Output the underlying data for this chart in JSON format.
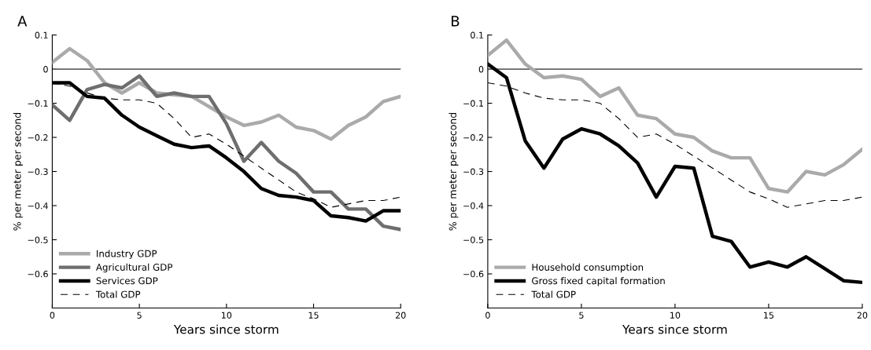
{
  "chart_data": [
    {
      "type": "line",
      "title": "A",
      "xlabel": "Years since storm",
      "ylabel": "% per meter per second",
      "x": [
        0,
        1,
        2,
        3,
        4,
        5,
        6,
        7,
        8,
        9,
        10,
        11,
        12,
        13,
        14,
        15,
        16,
        17,
        18,
        19,
        20
      ],
      "series": [
        {
          "name": "Industry GDP",
          "color": "#aaaaaa",
          "values": [
            0.02,
            0.06,
            0.025,
            -0.04,
            -0.07,
            -0.04,
            -0.07,
            -0.075,
            -0.08,
            -0.11,
            -0.14,
            -0.165,
            -0.155,
            -0.135,
            -0.17,
            -0.18,
            -0.205,
            -0.165,
            -0.14,
            -0.095,
            -0.08
          ]
        },
        {
          "name": "Agricultural GDP",
          "color": "#6e6e6e",
          "values": [
            -0.105,
            -0.15,
            -0.06,
            -0.045,
            -0.055,
            -0.02,
            -0.08,
            -0.07,
            -0.08,
            -0.08,
            -0.16,
            -0.27,
            -0.215,
            -0.27,
            -0.305,
            -0.36,
            -0.36,
            -0.41,
            -0.41,
            -0.46,
            -0.47
          ]
        },
        {
          "name": "Services GDP",
          "color": "#000000",
          "values": [
            -0.04,
            -0.04,
            -0.08,
            -0.085,
            -0.135,
            -0.17,
            -0.195,
            -0.22,
            -0.23,
            -0.225,
            -0.26,
            -0.3,
            -0.35,
            -0.37,
            -0.375,
            -0.385,
            -0.43,
            -0.435,
            -0.445,
            -0.415,
            -0.415
          ]
        },
        {
          "name": "Total GDP",
          "color": "#000000",
          "line_style": "dashed",
          "values": [
            -0.04,
            -0.05,
            -0.07,
            -0.085,
            -0.09,
            -0.09,
            -0.1,
            -0.145,
            -0.2,
            -0.19,
            -0.22,
            -0.255,
            -0.29,
            -0.325,
            -0.36,
            -0.38,
            -0.405,
            -0.395,
            -0.385,
            -0.385,
            -0.375
          ]
        }
      ],
      "xlim": [
        0,
        20
      ],
      "xticks": [
        0,
        5,
        10,
        15,
        20
      ],
      "ylim": [
        -0.7,
        0.1
      ],
      "yticks": [
        0.1,
        0,
        {
          "value": -0.1,
          "label": "−0.1"
        },
        {
          "value": -0.2,
          "label": "−0.2"
        },
        {
          "value": -0.3,
          "label": "−0.3"
        },
        {
          "value": -0.4,
          "label": "−0.4"
        },
        {
          "value": -0.5,
          "label": "−0.5"
        },
        {
          "value": -0.6,
          "label": "−0.6"
        }
      ],
      "ref_lines": [
        {
          "axis": "y",
          "value": 0,
          "color": "#666666"
        }
      ],
      "legend": "bottom left",
      "grid": false
    },
    {
      "type": "line",
      "title": "B",
      "xlabel": "Years since storm",
      "ylabel": "% per meter per second",
      "x": [
        0,
        1,
        2,
        3,
        4,
        5,
        6,
        7,
        8,
        9,
        10,
        11,
        12,
        13,
        14,
        15,
        16,
        17,
        18,
        19,
        20
      ],
      "series": [
        {
          "name": "Household consumption",
          "color": "#aaaaaa",
          "values": [
            0.04,
            0.085,
            0.015,
            -0.025,
            -0.02,
            -0.03,
            -0.08,
            -0.055,
            -0.135,
            -0.145,
            -0.19,
            -0.2,
            -0.24,
            -0.26,
            -0.26,
            -0.35,
            -0.36,
            -0.3,
            -0.31,
            -0.28,
            -0.235
          ]
        },
        {
          "name": "Gross fixed capital formation",
          "color": "#000000",
          "values": [
            0.015,
            -0.025,
            -0.21,
            -0.29,
            -0.205,
            -0.175,
            -0.19,
            -0.225,
            -0.275,
            -0.375,
            -0.285,
            -0.29,
            -0.49,
            -0.505,
            -0.58,
            -0.565,
            -0.58,
            -0.55,
            -0.585,
            -0.62,
            -0.625
          ]
        },
        {
          "name": "Total GDP",
          "color": "#000000",
          "line_style": "dashed",
          "values": [
            -0.04,
            -0.05,
            -0.07,
            -0.085,
            -0.09,
            -0.09,
            -0.1,
            -0.145,
            -0.2,
            -0.19,
            -0.22,
            -0.255,
            -0.29,
            -0.325,
            -0.36,
            -0.38,
            -0.405,
            -0.395,
            -0.385,
            -0.385,
            -0.375
          ]
        }
      ],
      "xlim": [
        0,
        20
      ],
      "xticks": [
        0,
        5,
        10,
        15,
        20
      ],
      "ylim": [
        -0.7,
        0.1
      ],
      "yticks": [
        0.1,
        0,
        {
          "value": -0.1,
          "label": "−0.1"
        },
        {
          "value": -0.2,
          "label": "−0.2"
        },
        {
          "value": -0.3,
          "label": "−0.3"
        },
        {
          "value": -0.4,
          "label": "−0.4"
        },
        {
          "value": -0.5,
          "label": "−0.5"
        },
        {
          "value": -0.6,
          "label": "−0.6"
        }
      ],
      "ref_lines": [
        {
          "axis": "y",
          "value": 0,
          "color": "#666666"
        }
      ],
      "legend": "bottom left",
      "grid": false
    }
  ]
}
